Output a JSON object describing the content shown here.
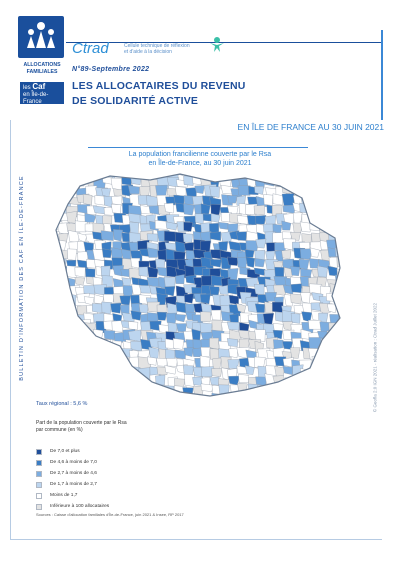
{
  "header": {
    "caf_logo_text": "ALLOCATIONS FAMILIALES",
    "caf_badge_line1": "les",
    "caf_badge_brand": "Caf",
    "caf_badge_line2": "en Île-de-France",
    "ctrad": "Ctrad",
    "ctrad_subtitle_line1": "Cellule technique de réflexion",
    "ctrad_subtitle_line2": "et d'aide à la décision",
    "issue": "N°89-Septembre 2022",
    "title_line1": "LES ALLOCATAIRES DU REVENU",
    "title_line2": "DE SOLIDARITÉ ACTIVE"
  },
  "region_heading": "EN ÎLE DE FRANCE AU 30 JUIN 2021",
  "map_title_line1": "La population francilienne couverte par le Rsa",
  "map_title_line2": "en Île-de-France, au 30 juin 2021",
  "side_text": "BULLETIN D'INFORMATION DES CAF EN ÎLE-DE-FRANCE",
  "credit": "© Geofla 2.0 IGN 2021 - réalisation : Ctrad Juillet 2022",
  "regional_rate": "Taux régional : 5,6 %",
  "legend": {
    "title_line1": "Part de la population couverte par le Rsa",
    "title_line2": "par commune (en %)",
    "items": [
      {
        "label": "De 7,0 et plus",
        "color": "#1f4e9a"
      },
      {
        "label": "De 4,6 à moins de 7,0",
        "color": "#3a7dc4"
      },
      {
        "label": "De 2,7 à moins de 4,6",
        "color": "#7cade0"
      },
      {
        "label": "De 1,7 à moins de 2,7",
        "color": "#bcd5ef"
      },
      {
        "label": "Moins de 1,7",
        "color": "#ffffff"
      },
      {
        "label": "Inférieure à 100 allocataires",
        "color": "#e3e3e3"
      }
    ]
  },
  "sources": "Sources : Caisse d'allocation familiales d'Île-de-France, juin 2021 & Insee, RP 2017"
}
